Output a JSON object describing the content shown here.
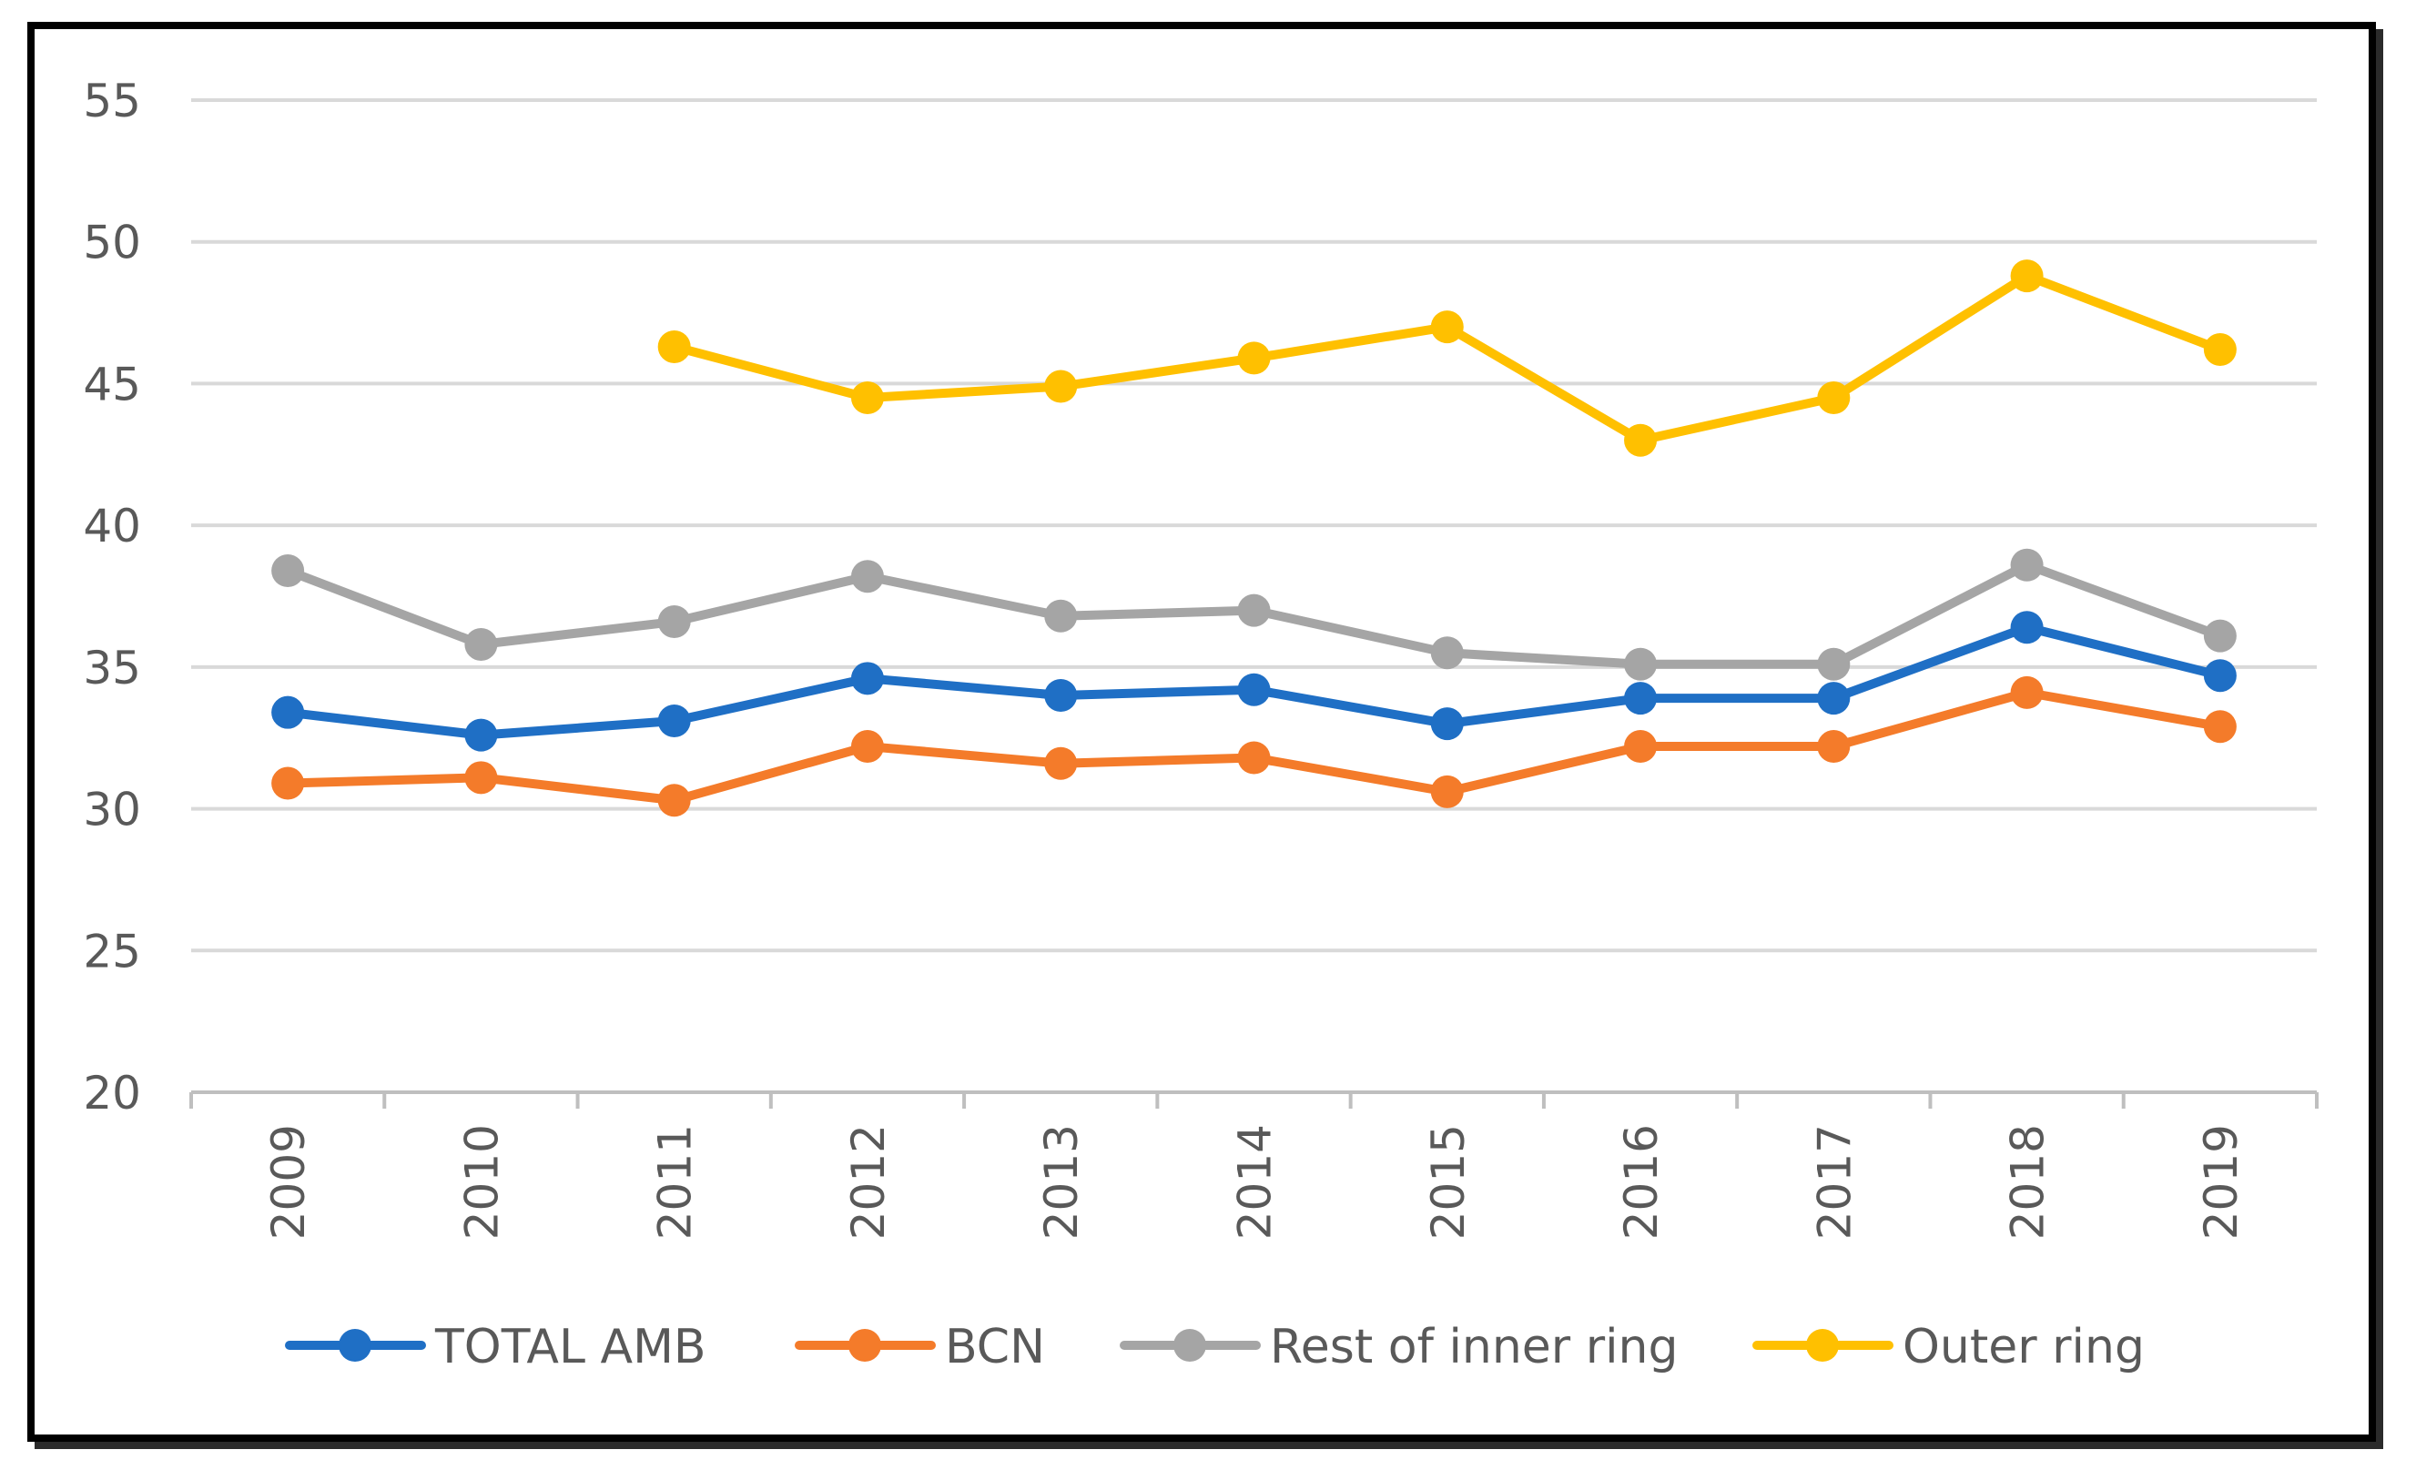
{
  "chart_data": {
    "type": "line",
    "title": "",
    "xlabel": "",
    "ylabel": "",
    "categories": [
      "2009",
      "2010",
      "2011",
      "2012",
      "2013",
      "2014",
      "2015",
      "2016",
      "2017",
      "2018",
      "2019"
    ],
    "ylim": [
      20,
      55
    ],
    "yticks": [
      "20",
      "25",
      "30",
      "35",
      "40",
      "45",
      "50",
      "55"
    ],
    "grid": true,
    "legend_position": "bottom",
    "series": [
      {
        "name": "TOTAL AMB",
        "color": "#1f6fc5",
        "values": [
          33.4,
          32.6,
          33.1,
          34.6,
          34.0,
          34.2,
          33.0,
          33.9,
          33.9,
          36.4,
          34.7
        ]
      },
      {
        "name": "BCN",
        "color": "#f47b2a",
        "values": [
          30.9,
          31.1,
          30.3,
          32.2,
          31.6,
          31.8,
          30.6,
          32.2,
          32.2,
          34.1,
          32.9
        ]
      },
      {
        "name": "Rest of inner ring",
        "color": "#a5a5a5",
        "values": [
          38.4,
          35.8,
          36.6,
          38.2,
          36.8,
          37.0,
          35.5,
          35.1,
          35.1,
          38.6,
          36.1
        ]
      },
      {
        "name": "Outer ring",
        "color": "#ffc000",
        "values": [
          null,
          null,
          46.3,
          44.5,
          44.9,
          45.9,
          47.0,
          43.0,
          44.5,
          48.8,
          46.2
        ]
      }
    ],
    "axis_colors": {
      "grid": "#d9d9d9",
      "axis": "#bfbfbf"
    }
  }
}
